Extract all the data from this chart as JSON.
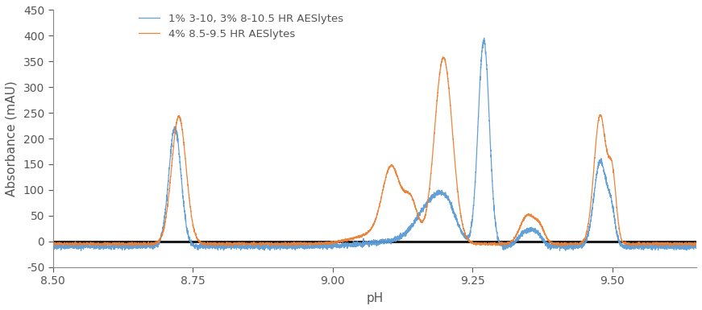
{
  "title": "",
  "xlabel": "pH",
  "ylabel": "Absorbance (mAU)",
  "xlim": [
    8.5,
    9.65
  ],
  "ylim": [
    -50,
    450
  ],
  "xticks": [
    8.5,
    8.75,
    9.0,
    9.25,
    9.5
  ],
  "xtick_labels": [
    "8.50",
    "8.75",
    "9.00",
    "9.25",
    "9.50"
  ],
  "blue_color": "#5b9bd5",
  "orange_color": "#ed7d31",
  "baseline_color": "#1a1a1a",
  "background_color": "#ffffff",
  "legend_label_blue": "1% 3-10, 3% 8-10.5 HR AESlytes",
  "legend_label_orange": "4% 8.5-9.5 HR AESlytes",
  "figsize": [
    8.71,
    3.85
  ],
  "dpi": 100,
  "blue_peaks": [
    {
      "mu": 8.718,
      "sigma": 0.011,
      "amp": 230
    },
    {
      "mu": 9.175,
      "sigma": 0.025,
      "amp": 70
    },
    {
      "mu": 9.205,
      "sigma": 0.018,
      "amp": 55
    },
    {
      "mu": 9.27,
      "sigma": 0.01,
      "amp": 400
    },
    {
      "mu": 9.345,
      "sigma": 0.013,
      "amp": 28
    },
    {
      "mu": 9.365,
      "sigma": 0.01,
      "amp": 20
    },
    {
      "mu": 9.478,
      "sigma": 0.011,
      "amp": 165
    },
    {
      "mu": 9.498,
      "sigma": 0.007,
      "amp": 60
    }
  ],
  "orange_peaks": [
    {
      "mu": 8.725,
      "sigma": 0.013,
      "amp": 248
    },
    {
      "mu": 9.105,
      "sigma": 0.016,
      "amp": 135
    },
    {
      "mu": 9.14,
      "sigma": 0.012,
      "amp": 75
    },
    {
      "mu": 9.198,
      "sigma": 0.016,
      "amp": 362
    },
    {
      "mu": 9.348,
      "sigma": 0.013,
      "amp": 55
    },
    {
      "mu": 9.37,
      "sigma": 0.009,
      "amp": 28
    },
    {
      "mu": 9.478,
      "sigma": 0.011,
      "amp": 250
    },
    {
      "mu": 9.5,
      "sigma": 0.007,
      "amp": 120
    }
  ],
  "blue_baseline": -10,
  "orange_baseline": -5,
  "blue_noise_std": 2.5,
  "orange_noise_std": 1.2
}
